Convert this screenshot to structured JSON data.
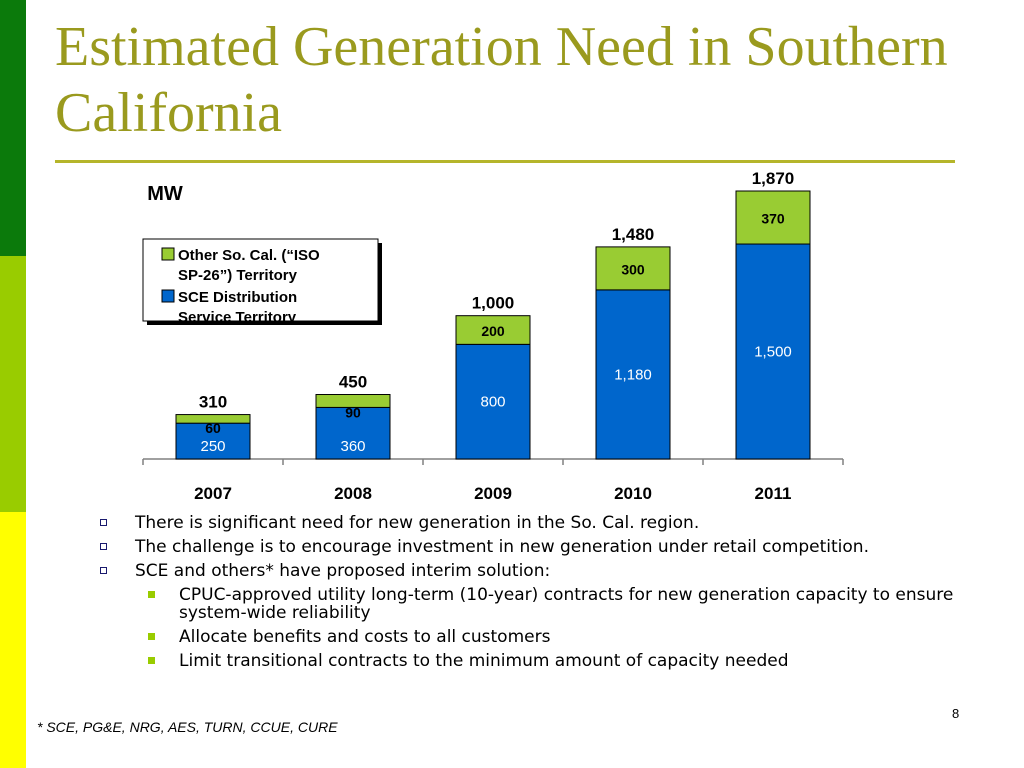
{
  "slide": {
    "title": "Estimated Generation Need in Southern California",
    "page_number": "8",
    "footnote": "* SCE, PG&E, NRG, AES, TURN, CCUE, CURE",
    "colors": {
      "title": "#9a9a1e",
      "rule": "#b5b52a",
      "stripe_top": "#0b7a0b",
      "stripe_mid": "#99cc00",
      "stripe_bottom": "#ffff00"
    },
    "bullets": [
      {
        "level": 1,
        "text": "There is significant need for new generation in the So. Cal. region."
      },
      {
        "level": 1,
        "text": "The challenge is to encourage investment in new generation under retail competition."
      },
      {
        "level": 1,
        "text": "SCE and others* have proposed interim solution:"
      },
      {
        "level": 2,
        "text": "CPUC-approved utility long-term (10-year) contracts for new generation capacity to ensure system-wide reliability"
      },
      {
        "level": 2,
        "text": "Allocate benefits and costs to all customers"
      },
      {
        "level": 2,
        "text": "Limit transitional contracts to the minimum amount of capacity needed"
      }
    ]
  },
  "chart_data": {
    "type": "bar",
    "stacked": true,
    "unit_label": "MW",
    "categories": [
      "2007",
      "2008",
      "2009",
      "2010",
      "2011"
    ],
    "series": [
      {
        "name": "SCE Distribution Service Territory",
        "color": "#0066cc",
        "values": [
          250,
          360,
          800,
          1180,
          1500
        ],
        "labels": [
          "250",
          "360",
          "800",
          "1,180",
          "1,500"
        ]
      },
      {
        "name": "Other So. Cal. (“ISO SP-26”) Territory",
        "color": "#99cc33",
        "values": [
          60,
          90,
          200,
          300,
          370
        ],
        "labels": [
          "60",
          "90",
          "200",
          "300",
          "370"
        ]
      }
    ],
    "totals": [
      310,
      450,
      1000,
      1480,
      1870
    ],
    "total_labels": [
      "310",
      "450",
      "1,000",
      "1,480",
      "1,870"
    ],
    "legend": {
      "placement": "top-left",
      "entries": [
        {
          "lines": [
            "Other So. Cal. (“ISO",
            "SP-26”) Territory"
          ],
          "color": "#99cc33"
        },
        {
          "lines": [
            "SCE Distribution",
            "Service Territory"
          ],
          "color": "#0066cc"
        }
      ]
    },
    "ylim": [
      0,
      1870
    ],
    "grid": false
  }
}
